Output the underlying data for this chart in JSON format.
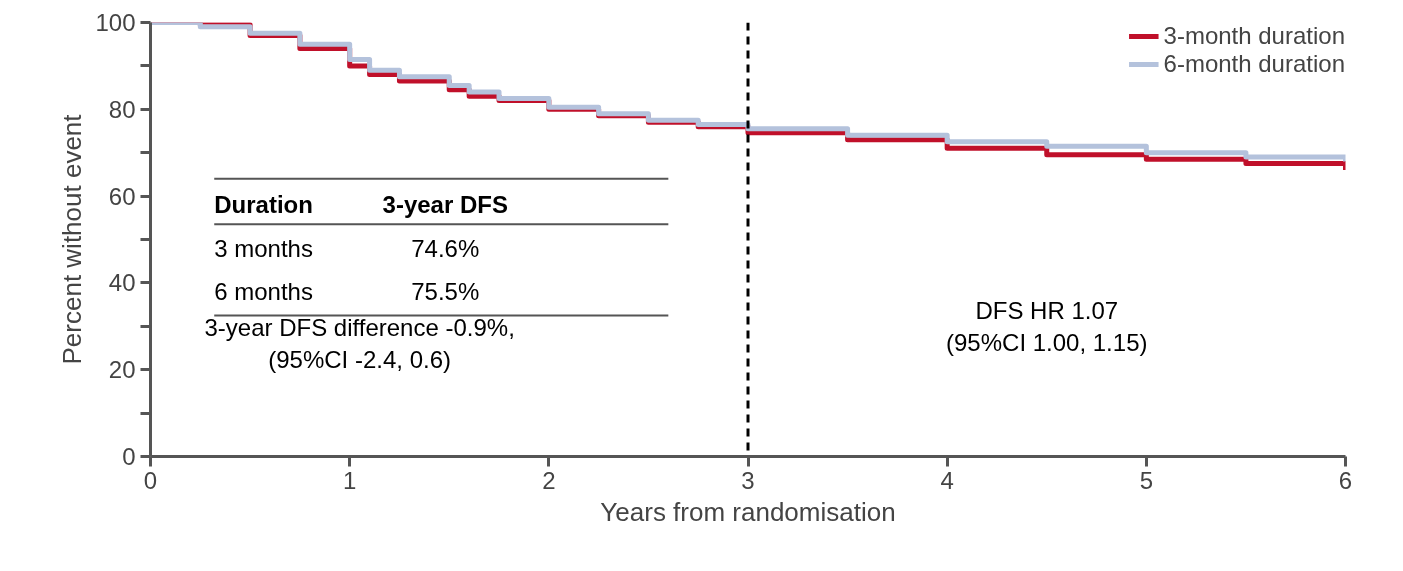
{
  "chart_data": {
    "type": "step",
    "xlabel": "Years from randomisation",
    "ylabel": "Percent without event",
    "x": [
      0,
      0.25,
      0.5,
      0.75,
      1.0,
      1.1,
      1.25,
      1.5,
      1.6,
      1.75,
      2.0,
      2.25,
      2.5,
      2.75,
      3.0,
      3.5,
      4.0,
      4.5,
      5.0,
      5.5,
      6.0
    ],
    "series": [
      {
        "name": "3-month duration",
        "color": "#c0102a",
        "values": [
          100,
          99.5,
          97,
          94,
          90,
          88,
          86.5,
          84.5,
          83,
          82,
          80,
          78.5,
          77,
          76,
          74.6,
          73,
          71,
          69.5,
          68.5,
          67.5,
          66
        ]
      },
      {
        "name": "6-month duration",
        "color": "#b4c2dc",
        "values": [
          100,
          99,
          97.5,
          95,
          91.5,
          89,
          87.5,
          85.5,
          84,
          82.5,
          80.5,
          79,
          77.5,
          76.5,
          75.5,
          74,
          72.5,
          71.5,
          70,
          69,
          68
        ]
      }
    ],
    "xlim": [
      0,
      6
    ],
    "ylim": [
      0,
      100
    ],
    "xticks": [
      0,
      1,
      2,
      3,
      4,
      5,
      6
    ],
    "yticks": [
      0,
      {
        "value": 10,
        "label": null
      },
      20,
      {
        "value": 30,
        "label": null
      },
      40,
      {
        "value": 50,
        "label": null
      },
      60,
      {
        "value": 70,
        "label": null
      },
      80,
      {
        "value": 90,
        "label": null
      },
      100
    ],
    "ref_lines": [
      {
        "axis": "x",
        "value": 3,
        "color": "#000000",
        "line_style": "dashed"
      }
    ],
    "annotations": [
      "Duration",
      "3-year DFS",
      "3 months",
      "74.6%",
      "6 months",
      "75.5%",
      "3-year DFS difference -0.9%,\n(95%CI -2.4, 0.6)",
      "DFS HR 1.07\n(95%CI 1.00, 1.15)"
    ],
    "legend": "top right",
    "grid": false,
    "line_style": "solid"
  }
}
